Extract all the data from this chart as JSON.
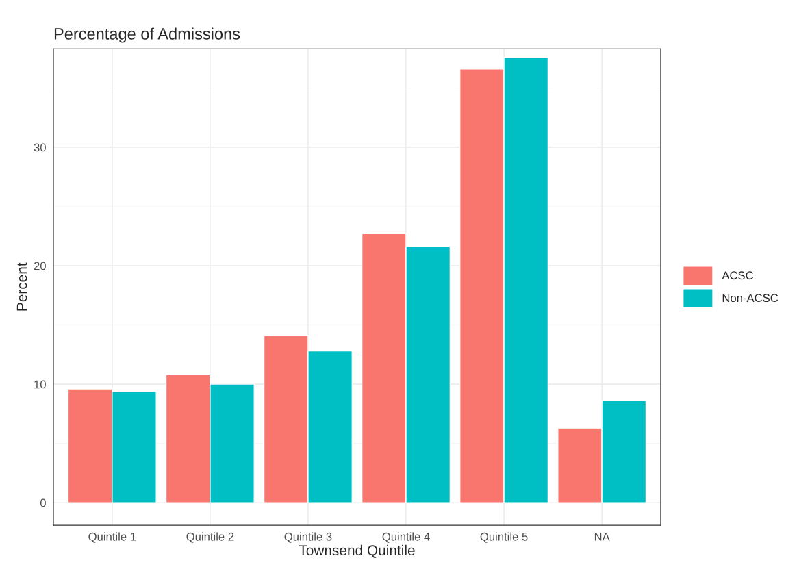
{
  "chart_data": {
    "type": "bar",
    "title": "Percentage of Admissions",
    "xlabel": "Townsend Quintile",
    "ylabel": "Percent",
    "categories": [
      "Quintile 1",
      "Quintile 2",
      "Quintile 3",
      "Quintile 4",
      "Quintile 5",
      "NA"
    ],
    "series": [
      {
        "name": "ACSC",
        "color": "#f8766d",
        "values": [
          9.6,
          10.8,
          14.1,
          22.7,
          36.6,
          6.3
        ]
      },
      {
        "name": "Non-ACSC",
        "color": "#00bfc4",
        "values": [
          9.4,
          10.0,
          12.8,
          21.6,
          37.6,
          8.6
        ]
      }
    ],
    "ylim": [
      -1.9,
      38.3
    ],
    "yticks": [
      0,
      10,
      20,
      30
    ],
    "grid": true,
    "legend": "right"
  }
}
